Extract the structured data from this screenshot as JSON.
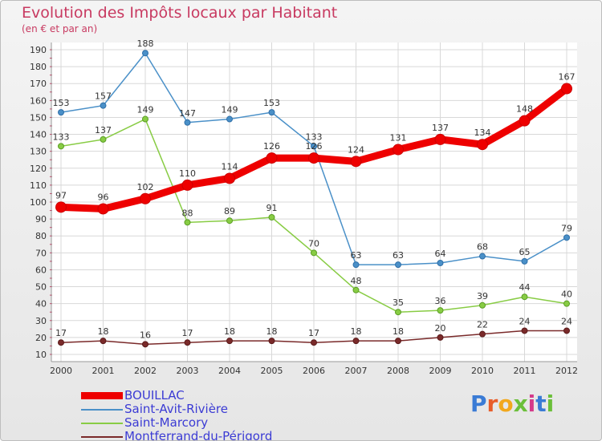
{
  "header": {
    "title": "Evolution des Impôts locaux par Habitant",
    "subtitle": "(en € et par an)"
  },
  "brand": {
    "logo_text": "Proxiti"
  },
  "colors": {
    "background": "#efefef",
    "title": "#c83a61",
    "grid": "#d8d8d8",
    "axis_tick": "#c83a61",
    "legend_text": "#3b3bd4"
  },
  "chart_data": {
    "type": "line",
    "title": "Evolution des Impôts locaux par Habitant",
    "subtitle": "(en € et par an)",
    "x": [
      "2000",
      "2001",
      "2002",
      "2003",
      "2004",
      "2005",
      "2006",
      "2007",
      "2008",
      "2009",
      "2010",
      "2011",
      "2012"
    ],
    "ylim": [
      10,
      190
    ],
    "yticks": [
      10,
      20,
      30,
      40,
      50,
      60,
      70,
      80,
      90,
      100,
      110,
      120,
      130,
      140,
      150,
      160,
      170,
      180,
      190
    ],
    "grid": true,
    "legend_position": "bottom-left",
    "series": [
      {
        "name": "BOUILLAC",
        "color": "#ee0000",
        "values": [
          97,
          96,
          102,
          110,
          114,
          126,
          126,
          124,
          131,
          137,
          134,
          148,
          167
        ]
      },
      {
        "name": "Saint-Avit-Rivière",
        "color": "#4a90c8",
        "values": [
          153,
          157,
          188,
          147,
          149,
          153,
          133,
          63,
          63,
          64,
          68,
          65,
          79
        ]
      },
      {
        "name": "Saint-Marcory",
        "color": "#88cc44",
        "values": [
          133,
          137,
          149,
          88,
          89,
          91,
          70,
          48,
          35,
          36,
          39,
          44,
          40
        ]
      },
      {
        "name": "Montferrand-du-Périgord",
        "color": "#7a2a2a",
        "values": [
          17,
          18,
          16,
          17,
          18,
          18,
          17,
          18,
          18,
          20,
          22,
          24,
          24
        ]
      }
    ]
  }
}
